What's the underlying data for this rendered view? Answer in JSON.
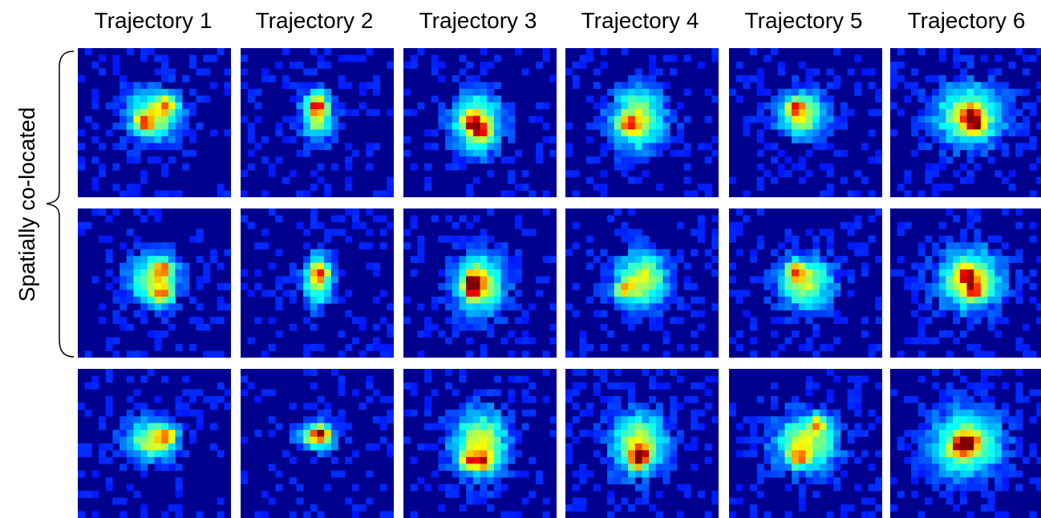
{
  "column_titles": [
    "Trajectory 1",
    "Trajectory 2",
    "Trajectory 3",
    "Trajectory 4",
    "Trajectory 5",
    "Trajectory 6"
  ],
  "row_group_label": "Spatially co-located",
  "grid": {
    "rows": 3,
    "cols": 6
  },
  "colormap": "jet",
  "heatmaps": [
    [
      {
        "center": [
          0.5,
          0.45
        ],
        "radius": [
          0.17,
          0.16
        ],
        "peak": 0.95,
        "hotspots": [
          [
            0.58,
            0.38
          ],
          [
            0.43,
            0.5
          ]
        ]
      },
      {
        "center": [
          0.5,
          0.45
        ],
        "radius": [
          0.1,
          0.16
        ],
        "peak": 0.9,
        "hotspots": [
          [
            0.5,
            0.38
          ]
        ]
      },
      {
        "center": [
          0.48,
          0.5
        ],
        "radius": [
          0.16,
          0.2
        ],
        "peak": 0.95,
        "hotspots": [
          [
            0.45,
            0.5
          ],
          [
            0.5,
            0.55
          ]
        ]
      },
      {
        "center": [
          0.47,
          0.48
        ],
        "radius": [
          0.17,
          0.2
        ],
        "peak": 0.9,
        "hotspots": [
          [
            0.41,
            0.52
          ]
        ]
      },
      {
        "center": [
          0.48,
          0.45
        ],
        "radius": [
          0.15,
          0.15
        ],
        "peak": 0.9,
        "hotspots": [
          [
            0.43,
            0.4
          ]
        ]
      },
      {
        "center": [
          0.52,
          0.45
        ],
        "radius": [
          0.22,
          0.2
        ],
        "peak": 1.0,
        "hotspots": [
          [
            0.52,
            0.45
          ],
          [
            0.55,
            0.52
          ]
        ]
      }
    ],
    [
      {
        "center": [
          0.5,
          0.48
        ],
        "radius": [
          0.16,
          0.16
        ],
        "peak": 0.95,
        "hotspots": [
          [
            0.55,
            0.4
          ],
          [
            0.55,
            0.58
          ]
        ]
      },
      {
        "center": [
          0.5,
          0.48
        ],
        "radius": [
          0.09,
          0.16
        ],
        "peak": 0.9,
        "hotspots": [
          [
            0.52,
            0.43
          ]
        ]
      },
      {
        "center": [
          0.5,
          0.5
        ],
        "radius": [
          0.16,
          0.2
        ],
        "peak": 1.0,
        "hotspots": [
          [
            0.45,
            0.55
          ],
          [
            0.45,
            0.48
          ]
        ]
      },
      {
        "center": [
          0.5,
          0.48
        ],
        "radius": [
          0.17,
          0.18
        ],
        "peak": 0.85,
        "hotspots": [
          [
            0.38,
            0.55
          ]
        ]
      },
      {
        "center": [
          0.5,
          0.5
        ],
        "radius": [
          0.17,
          0.17
        ],
        "peak": 0.95,
        "hotspots": [
          [
            0.43,
            0.42
          ]
        ]
      },
      {
        "center": [
          0.52,
          0.48
        ],
        "radius": [
          0.2,
          0.2
        ],
        "peak": 1.0,
        "hotspots": [
          [
            0.55,
            0.55
          ],
          [
            0.5,
            0.45
          ]
        ]
      }
    ],
    [
      {
        "center": [
          0.48,
          0.48
        ],
        "radius": [
          0.16,
          0.13
        ],
        "peak": 0.9,
        "hotspots": [
          [
            0.58,
            0.45
          ]
        ]
      },
      {
        "center": [
          0.5,
          0.45
        ],
        "radius": [
          0.12,
          0.09
        ],
        "peak": 0.95,
        "hotspots": [
          [
            0.52,
            0.44
          ]
        ]
      },
      {
        "center": [
          0.5,
          0.5
        ],
        "radius": [
          0.18,
          0.22
        ],
        "peak": 0.95,
        "hotspots": [
          [
            0.52,
            0.62
          ],
          [
            0.42,
            0.62
          ]
        ]
      },
      {
        "center": [
          0.48,
          0.5
        ],
        "radius": [
          0.18,
          0.2
        ],
        "peak": 1.0,
        "hotspots": [
          [
            0.47,
            0.62
          ],
          [
            0.5,
            0.57
          ]
        ]
      },
      {
        "center": [
          0.5,
          0.5
        ],
        "radius": [
          0.2,
          0.18
        ],
        "peak": 1.0,
        "hotspots": [
          [
            0.58,
            0.37
          ],
          [
            0.45,
            0.6
          ]
        ]
      },
      {
        "center": [
          0.5,
          0.5
        ],
        "radius": [
          0.22,
          0.22
        ],
        "peak": 1.0,
        "hotspots": [
          [
            0.45,
            0.52
          ],
          [
            0.52,
            0.5
          ]
        ]
      }
    ]
  ]
}
